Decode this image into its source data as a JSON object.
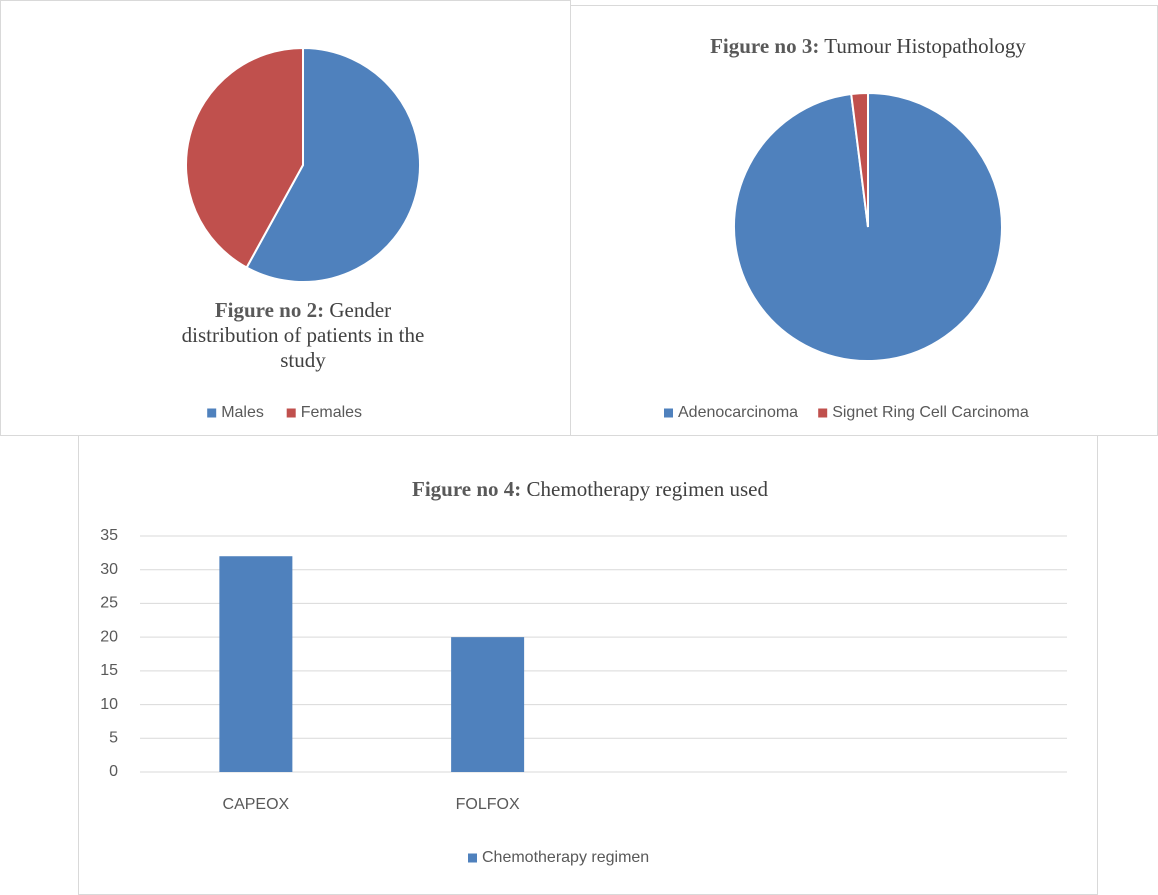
{
  "chart_data": [
    {
      "type": "pie",
      "title_label": "Figure no 2:",
      "title": "Gender distribution of patients in the study",
      "categories": [
        "Males",
        "Females"
      ],
      "values": [
        58,
        42
      ],
      "colors": [
        "#4f81bd",
        "#c0504d"
      ],
      "legend": "bottom"
    },
    {
      "type": "pie",
      "title_label": "Figure no 3:",
      "title": "Tumour Histopathology",
      "categories": [
        "Adenocarcinoma",
        "Signet Ring Cell Carcinoma"
      ],
      "values": [
        98,
        2
      ],
      "colors": [
        "#4f81bd",
        "#c0504d"
      ],
      "legend": "bottom"
    },
    {
      "type": "bar",
      "title_label": "Figure no 4:",
      "title": "Chemotherapy regimen used",
      "categories": [
        "CAPEOX",
        "FOLFOX",
        null,
        null
      ],
      "series": [
        {
          "name": "Chemotherapy regimen",
          "color": "#4f81bd",
          "values": [
            32,
            20,
            null,
            null
          ]
        }
      ],
      "ylim": [
        0,
        35
      ],
      "yticks": [
        0,
        5,
        10,
        15,
        20,
        25,
        30,
        35
      ],
      "grid": true,
      "legend": "bottom"
    }
  ]
}
